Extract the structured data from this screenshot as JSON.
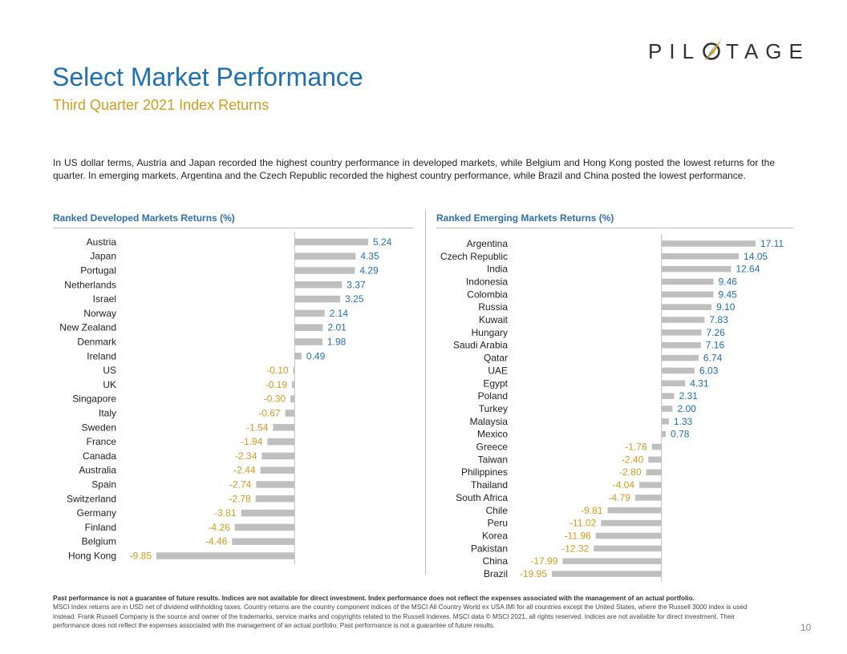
{
  "brand": {
    "name": "PILOTAGE",
    "accent_blue": "#1f6fb4",
    "accent_gold": "#d49b1c",
    "bar_gray": "#bfbfbf",
    "logo_prefix": "PIL",
    "logo_suffix": "TAGE"
  },
  "header": {
    "title": "Select Market Performance",
    "subtitle": "Third Quarter 2021 Index Returns"
  },
  "intro_text": "In US dollar terms, Austria and Japan recorded the highest country performance in developed markets, while Belgium and Hong Kong posted the lowest returns for the quarter. In emerging markets, Argentina and the Czech Republic recorded the highest country performance, while Brazil and China posted the lowest performance.",
  "chart_data": [
    {
      "type": "bar",
      "orientation": "horizontal",
      "title": "Ranked Developed Markets Returns (%)",
      "categories": [
        "Austria",
        "Japan",
        "Portugal",
        "Netherlands",
        "Israel",
        "Norway",
        "New Zealand",
        "Denmark",
        "Ireland",
        "US",
        "UK",
        "Singapore",
        "Italy",
        "Sweden",
        "France",
        "Canada",
        "Australia",
        "Spain",
        "Switzerland",
        "Germany",
        "Finland",
        "Belgium",
        "Hong Kong"
      ],
      "values": [
        5.24,
        4.35,
        4.29,
        3.37,
        3.25,
        2.14,
        2.01,
        1.98,
        0.49,
        -0.1,
        -0.19,
        -0.3,
        -0.67,
        -1.54,
        -1.94,
        -2.34,
        -2.44,
        -2.74,
        -2.78,
        -3.81,
        -4.26,
        -4.46,
        -9.85
      ],
      "labels": [
        "5.24",
        "4.35",
        "4.29",
        "3.37",
        "3.25",
        "2.14",
        "2.01",
        "1.98",
        "0.49",
        "-0.10",
        "-0.19",
        "-0.30",
        "-0.67",
        "-1.54",
        "-1.94",
        "-2.34",
        "-2.44",
        "-2.74",
        "-2.78",
        "-3.81",
        "-4.26",
        "-4.46",
        "-9.85"
      ],
      "xlim": [
        -9.85,
        5.24
      ]
    },
    {
      "type": "bar",
      "orientation": "horizontal",
      "title": "Ranked Emerging Markets Returns (%)",
      "categories": [
        "Argentina",
        "Czech Republic",
        "India",
        "Indonesia",
        "Colombia",
        "Russia",
        "Kuwait",
        "Hungary",
        "Saudi Arabia",
        "Qatar",
        "UAE",
        "Egypt",
        "Poland",
        "Turkey",
        "Malaysia",
        "Mexico",
        "Greece",
        "Taiwan",
        "Philippines",
        "Thailand",
        "South Africa",
        "Chile",
        "Peru",
        "Korea",
        "Pakistan",
        "China",
        "Brazil"
      ],
      "values": [
        17.11,
        14.05,
        12.64,
        9.46,
        9.45,
        9.1,
        7.83,
        7.26,
        7.16,
        6.74,
        6.03,
        4.31,
        2.31,
        2.0,
        1.33,
        0.78,
        -1.76,
        -2.4,
        -2.8,
        -4.04,
        -4.79,
        -9.81,
        -11.02,
        -11.96,
        -12.32,
        -17.99,
        -19.95
      ],
      "labels": [
        "17.11",
        "14.05",
        "12.64",
        "9.46",
        "9.45",
        "9.10",
        "7.83",
        "7.26",
        "7.16",
        "6.74",
        "6.03",
        "4.31",
        "2.31",
        "2.00",
        "1.33",
        "0.78",
        "-1.76",
        "-2.40",
        "-2.80",
        "-4.04",
        "-4.79",
        "-9.81",
        "-11.02",
        "-11.96",
        "-12.32",
        "-17.99",
        "-19.95"
      ],
      "xlim": [
        -19.95,
        17.11
      ]
    }
  ],
  "footer": {
    "bold_line": "Past performance is not a guarantee of future results. Indices are not available for direct investment. Index performance does not reflect the expenses associated with the management of an actual portfolio.",
    "body": "MSCI Index returns are in USD net of dividend withholding taxes. Country returns are the country component indices of the MSCI All Country World ex USA IMI for all countries except the United States, where the Russell 3000 index is used instead. Frank Russell Company is the source and owner of the trademarks, service marks and copyrights related to the Russell Indexes. MSCI data © MSCI 2021, all rights reserved. Indices are not available for direct investment. Their performance does not reflect the expenses associated with the management of an actual portfolio. Past performance is not a guarantee of future results."
  },
  "page_number": "10"
}
